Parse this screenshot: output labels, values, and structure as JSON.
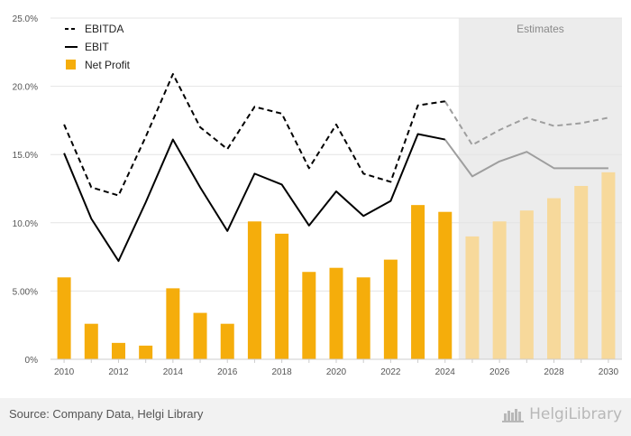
{
  "chart_data": {
    "type": "bar+line",
    "categories": [
      "2010",
      "2011",
      "2012",
      "2013",
      "2014",
      "2015",
      "2016",
      "2017",
      "2018",
      "2019",
      "2020",
      "2021",
      "2022",
      "2023",
      "2024",
      "2025",
      "2026",
      "2027",
      "2028",
      "2029",
      "2030"
    ],
    "x_tick_labels": [
      "2010",
      "2012",
      "2014",
      "2016",
      "2018",
      "2020",
      "2022",
      "2024",
      "2026",
      "2028",
      "2030"
    ],
    "y_tick_labels": [
      "0%",
      "5.00%",
      "10.0%",
      "15.0%",
      "20.0%",
      "25.0%"
    ],
    "ylim": [
      0,
      25
    ],
    "grid": true,
    "legend_position": "top-left",
    "estimates_from": "2025",
    "estimates_label": "Estimates",
    "series": [
      {
        "name": "EBITDA",
        "type": "line",
        "style": "dashed",
        "values": [
          17.2,
          12.6,
          12.0,
          16.3,
          20.9,
          17.0,
          15.4,
          18.5,
          18.0,
          14.0,
          17.2,
          13.6,
          13.0,
          18.6,
          18.9,
          15.7,
          16.8,
          17.7,
          17.1,
          17.3,
          17.7
        ]
      },
      {
        "name": "EBIT",
        "type": "line",
        "style": "solid",
        "values": [
          15.1,
          10.3,
          7.2,
          11.5,
          16.1,
          12.6,
          9.4,
          13.6,
          12.8,
          9.8,
          12.3,
          10.5,
          11.6,
          16.5,
          16.1,
          13.4,
          14.5,
          15.2,
          14.0,
          14.0,
          14.0
        ]
      },
      {
        "name": "Net Profit",
        "type": "bar",
        "values": [
          6.0,
          2.6,
          1.2,
          1.0,
          5.2,
          3.4,
          2.6,
          10.1,
          9.2,
          6.4,
          6.7,
          6.0,
          7.3,
          11.3,
          10.8,
          9.0,
          10.1,
          10.9,
          11.8,
          12.7,
          13.7
        ]
      }
    ],
    "colors": {
      "bar": "#f5ad0b",
      "bar_estimate": "#f7d99b",
      "line": "#000000",
      "line_estimate": "#9e9e9e",
      "estimate_band": "#ececec",
      "grid": "#e4e4e4"
    }
  },
  "footer": {
    "source": "Source: Company Data, Helgi Library",
    "brand": "HelgiLibrary"
  }
}
